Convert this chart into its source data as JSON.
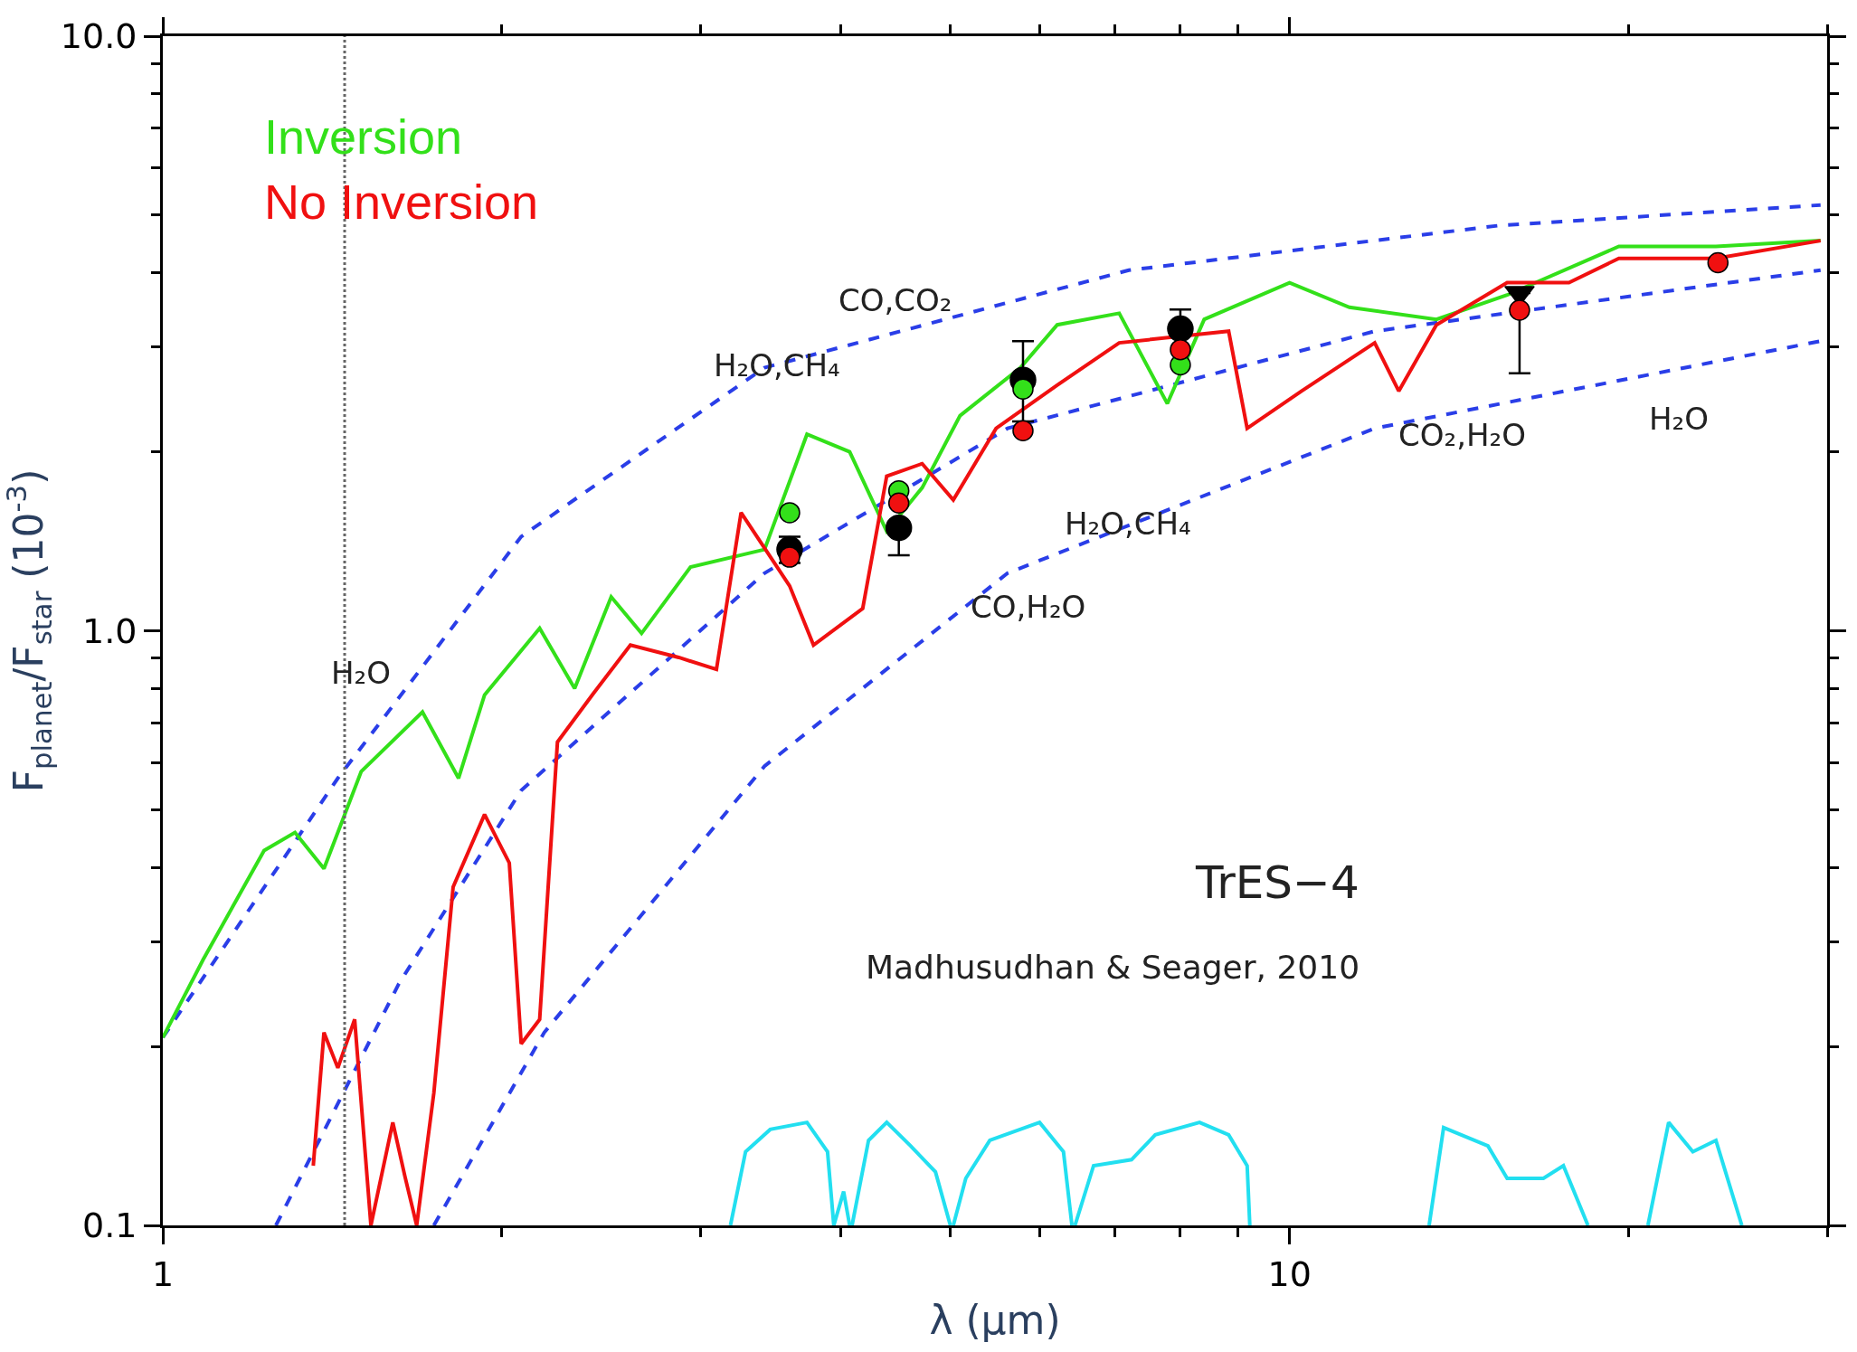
{
  "chart_data": {
    "type": "line",
    "xlabel": "λ (μm)",
    "ylabel": "F$_{planet}$/F$_{star}$ (10$^{-3}$)",
    "log": "xy",
    "xlim": [
      1,
      30
    ],
    "ylim": [
      0.1,
      10
    ],
    "legend": "top left",
    "xticks": [
      1,
      10
    ],
    "yticks": [
      0.1,
      {
        "value": 1,
        "label": "1.0"
      },
      {
        "value": 10,
        "label": "10.0"
      }
    ],
    "series": [
      {
        "color": "#2a3ee8",
        "line_style": "dashed",
        "marker": "none",
        "x": [
          1,
          1.43,
          2.08,
          3.42,
          7.2,
          15.3,
          29.6
        ],
        "values": [
          0.207,
          0.565,
          1.44,
          2.77,
          4.04,
          4.8,
          5.2
        ]
      },
      {
        "color": "#2a3ee8",
        "line_style": "dashed",
        "marker": "none",
        "x": [
          1.26,
          1.62,
          2.08,
          3.42,
          5.62,
          11.9,
          29.6
        ],
        "values": [
          0.1,
          0.255,
          0.539,
          1.25,
          2.19,
          3.19,
          4.04
        ]
      },
      {
        "color": "#2a3ee8",
        "line_style": "dashed",
        "marker": "none",
        "x": [
          1.74,
          2.18,
          3.42,
          5.62,
          11.9,
          29.6
        ],
        "values": [
          0.1,
          0.211,
          0.592,
          1.25,
          2.19,
          3.07
        ]
      },
      {
        "color": "#22dff0",
        "line_style": "solid",
        "marker": "none",
        "x": [
          3.19,
          3.29,
          3.46,
          3.73,
          3.89,
          3.94,
          4.02,
          4.07,
          4.08,
          4.09,
          4.23,
          4.39,
          4.61,
          4.85,
          5.0,
          5.02,
          5.03,
          5.16,
          5.42,
          6.0,
          6.3,
          6.41,
          6.43,
          6.45,
          6.7,
          7.24,
          7.6,
          8.32,
          8.83,
          9.17,
          9.22,
          11,
          13.3,
          13.7,
          15.0,
          15.6,
          16.8,
          17.5,
          18.4,
          20,
          20.8,
          21.7,
          22.8,
          23.9,
          25.2
        ],
        "values": [
          0.1,
          0.133,
          0.145,
          0.149,
          0.133,
          0.1,
          0.114,
          0.1,
          null,
          0.1,
          0.139,
          0.149,
          0.136,
          0.123,
          0.1,
          null,
          0.1,
          0.12,
          0.139,
          0.149,
          0.133,
          0.1,
          null,
          0.1,
          0.126,
          0.129,
          0.142,
          0.149,
          0.142,
          0.126,
          0.1,
          null,
          0.1,
          0.146,
          0.136,
          0.12,
          0.12,
          0.126,
          0.1,
          null,
          0.1,
          0.149,
          0.133,
          0.139,
          0.1
        ]
      },
      {
        "name": "Inversion",
        "color": "#33e01a",
        "line_style": "solid",
        "marker": "none",
        "x": [
          1,
          1.086,
          1.23,
          1.31,
          1.39,
          1.5,
          1.7,
          1.83,
          1.93,
          2.16,
          2.32,
          2.5,
          2.66,
          2.94,
          3.42,
          3.73,
          4.07,
          4.39,
          4.72,
          5.1,
          5.77,
          6.22,
          7.06,
          7.79,
          8.4,
          10,
          11.3,
          13.5,
          15.6,
          19.6,
          23.9,
          29.6
        ],
        "values": [
          0.207,
          0.28,
          0.427,
          0.458,
          0.398,
          0.58,
          0.73,
          0.565,
          0.78,
          1.01,
          0.8,
          1.14,
          0.99,
          1.28,
          1.37,
          2.14,
          2.0,
          1.47,
          1.74,
          2.3,
          2.77,
          3.27,
          3.42,
          2.41,
          3.34,
          3.85,
          3.5,
          3.34,
          3.67,
          4.43,
          4.43,
          4.53
        ]
      },
      {
        "name": "No Inversion",
        "color": "#f01010",
        "line_style": "solid",
        "marker": "none",
        "x": [
          1.36,
          1.39,
          1.43,
          1.48,
          1.53,
          1.6,
          1.64,
          1.68,
          1.74,
          1.81,
          1.93,
          2.03,
          2.08,
          2.16,
          2.24,
          2.41,
          2.6,
          2.87,
          3.1,
          3.26,
          3.6,
          3.78,
          4.18,
          4.39,
          4.72,
          5.03,
          5.49,
          6.22,
          7.06,
          8.83,
          9.17,
          10.25,
          11.9,
          12.5,
          13.5,
          15.6,
          17.7,
          19.6,
          23.9,
          29.6
        ],
        "values": [
          0.126,
          0.211,
          0.184,
          0.222,
          0.1,
          0.149,
          0.121,
          0.1,
          0.167,
          0.371,
          0.491,
          0.407,
          0.202,
          0.222,
          0.65,
          0.784,
          0.946,
          0.902,
          0.861,
          1.58,
          1.19,
          0.946,
          1.09,
          1.82,
          1.91,
          1.66,
          2.19,
          2.59,
          3.05,
          3.19,
          2.19,
          2.53,
          3.05,
          2.53,
          3.27,
          3.85,
          3.85,
          4.23,
          4.23,
          4.53
        ]
      },
      {
        "type": "scatter",
        "color": "#000000",
        "marker": "circle",
        "x": [
          3.6,
          4.5,
          5.8,
          8.0
        ],
        "values": [
          1.37,
          1.49,
          2.64,
          3.22
        ],
        "errors": [
          [
            1.3,
            1.44
          ],
          [
            1.34,
            1.49
          ],
          [
            2.25,
            3.07
          ],
          [
            3.22,
            3.47
          ]
        ]
      },
      {
        "type": "scatter",
        "color": "#000000",
        "marker": "triangle",
        "x": [
          16
        ],
        "values": [
          3.7
        ],
        "errors": [
          [
            2.71,
            3.7
          ]
        ]
      },
      {
        "type": "scatter",
        "color": "#33e01a",
        "marker": "circle",
        "x": [
          3.6,
          4.5,
          5.8,
          8.0
        ],
        "values": [
          1.58,
          1.72,
          2.55,
          2.8
        ]
      },
      {
        "type": "scatter",
        "color": "#f01010",
        "marker": "circle",
        "x": [
          3.6,
          4.5,
          5.8,
          8.0,
          16,
          24
        ],
        "values": [
          1.33,
          1.64,
          2.17,
          2.97,
          3.46,
          4.16
        ]
      }
    ],
    "ref_lines": [
      {
        "axis": "x",
        "value": 1.45,
        "color": "#666666",
        "line_style": "dotted"
      }
    ],
    "annotations": [
      "CO,CO₂",
      "H₂O,CH₄",
      "H₂O",
      "H₂O,CH₄",
      "CO,H₂O",
      "CO₂,H₂O",
      "H₂O",
      "TrES−4",
      "Madhusudhan & Seager, 2010"
    ]
  }
}
